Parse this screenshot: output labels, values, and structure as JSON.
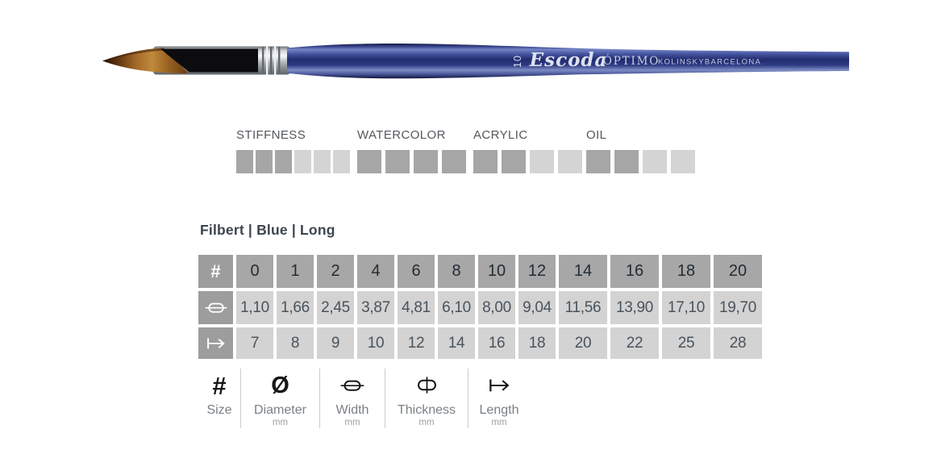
{
  "brush": {
    "size_marking": "10",
    "brand": "Escoda",
    "series": "ÓPTIMO",
    "hair_type": "KOLINSKY",
    "origin": "BARCELONA"
  },
  "title": "Filbert | Blue | Long",
  "ratings": [
    {
      "label": "STIFFNESS",
      "filled": 3,
      "total": 6
    },
    {
      "label": "WATERCOLOR",
      "filled": 4,
      "total": 4
    },
    {
      "label": "ACRYLIC",
      "filled": 2,
      "total": 4
    },
    {
      "label": "OIL",
      "filled": 2,
      "total": 4
    }
  ],
  "size_table": {
    "corner_symbol": "#",
    "sizes": [
      "0",
      "1",
      "2",
      "4",
      "6",
      "8",
      "10",
      "12",
      "14",
      "16",
      "18",
      "20"
    ],
    "rows": [
      {
        "icon": "width-icon",
        "values": [
          "1,10",
          "1,66",
          "2,45",
          "3,87",
          "4,81",
          "6,10",
          "8,00",
          "9,04",
          "11,56",
          "13,90",
          "17,10",
          "19,70"
        ]
      },
      {
        "icon": "length-icon",
        "values": [
          "7",
          "8",
          "9",
          "10",
          "12",
          "14",
          "16",
          "18",
          "20",
          "22",
          "25",
          "28"
        ]
      }
    ]
  },
  "legend": {
    "items": [
      {
        "icon": "hash-icon",
        "symbol": "#",
        "label": "Size",
        "unit": ""
      },
      {
        "icon": "diameter-icon",
        "symbol": "Ø",
        "label": "Diameter",
        "unit": "mm"
      },
      {
        "icon": "width-icon",
        "symbol": "",
        "label": "Width",
        "unit": "mm"
      },
      {
        "icon": "thickness-icon",
        "symbol": "",
        "label": "Thickness",
        "unit": "mm"
      },
      {
        "icon": "length-icon",
        "symbol": "",
        "label": "Length",
        "unit": "mm"
      }
    ]
  },
  "colors": {
    "rating_filled": "#a6a6a6",
    "rating_empty": "#d4d4d4",
    "table_header_bg": "#a7a7a7",
    "table_icon_bg": "#9d9d9d",
    "table_cell_bg": "#d3d3d3",
    "handle_blue": "#2b3a8c",
    "ferrule_silver": "#c9cdd1",
    "hair_amber": "#b5772f"
  }
}
